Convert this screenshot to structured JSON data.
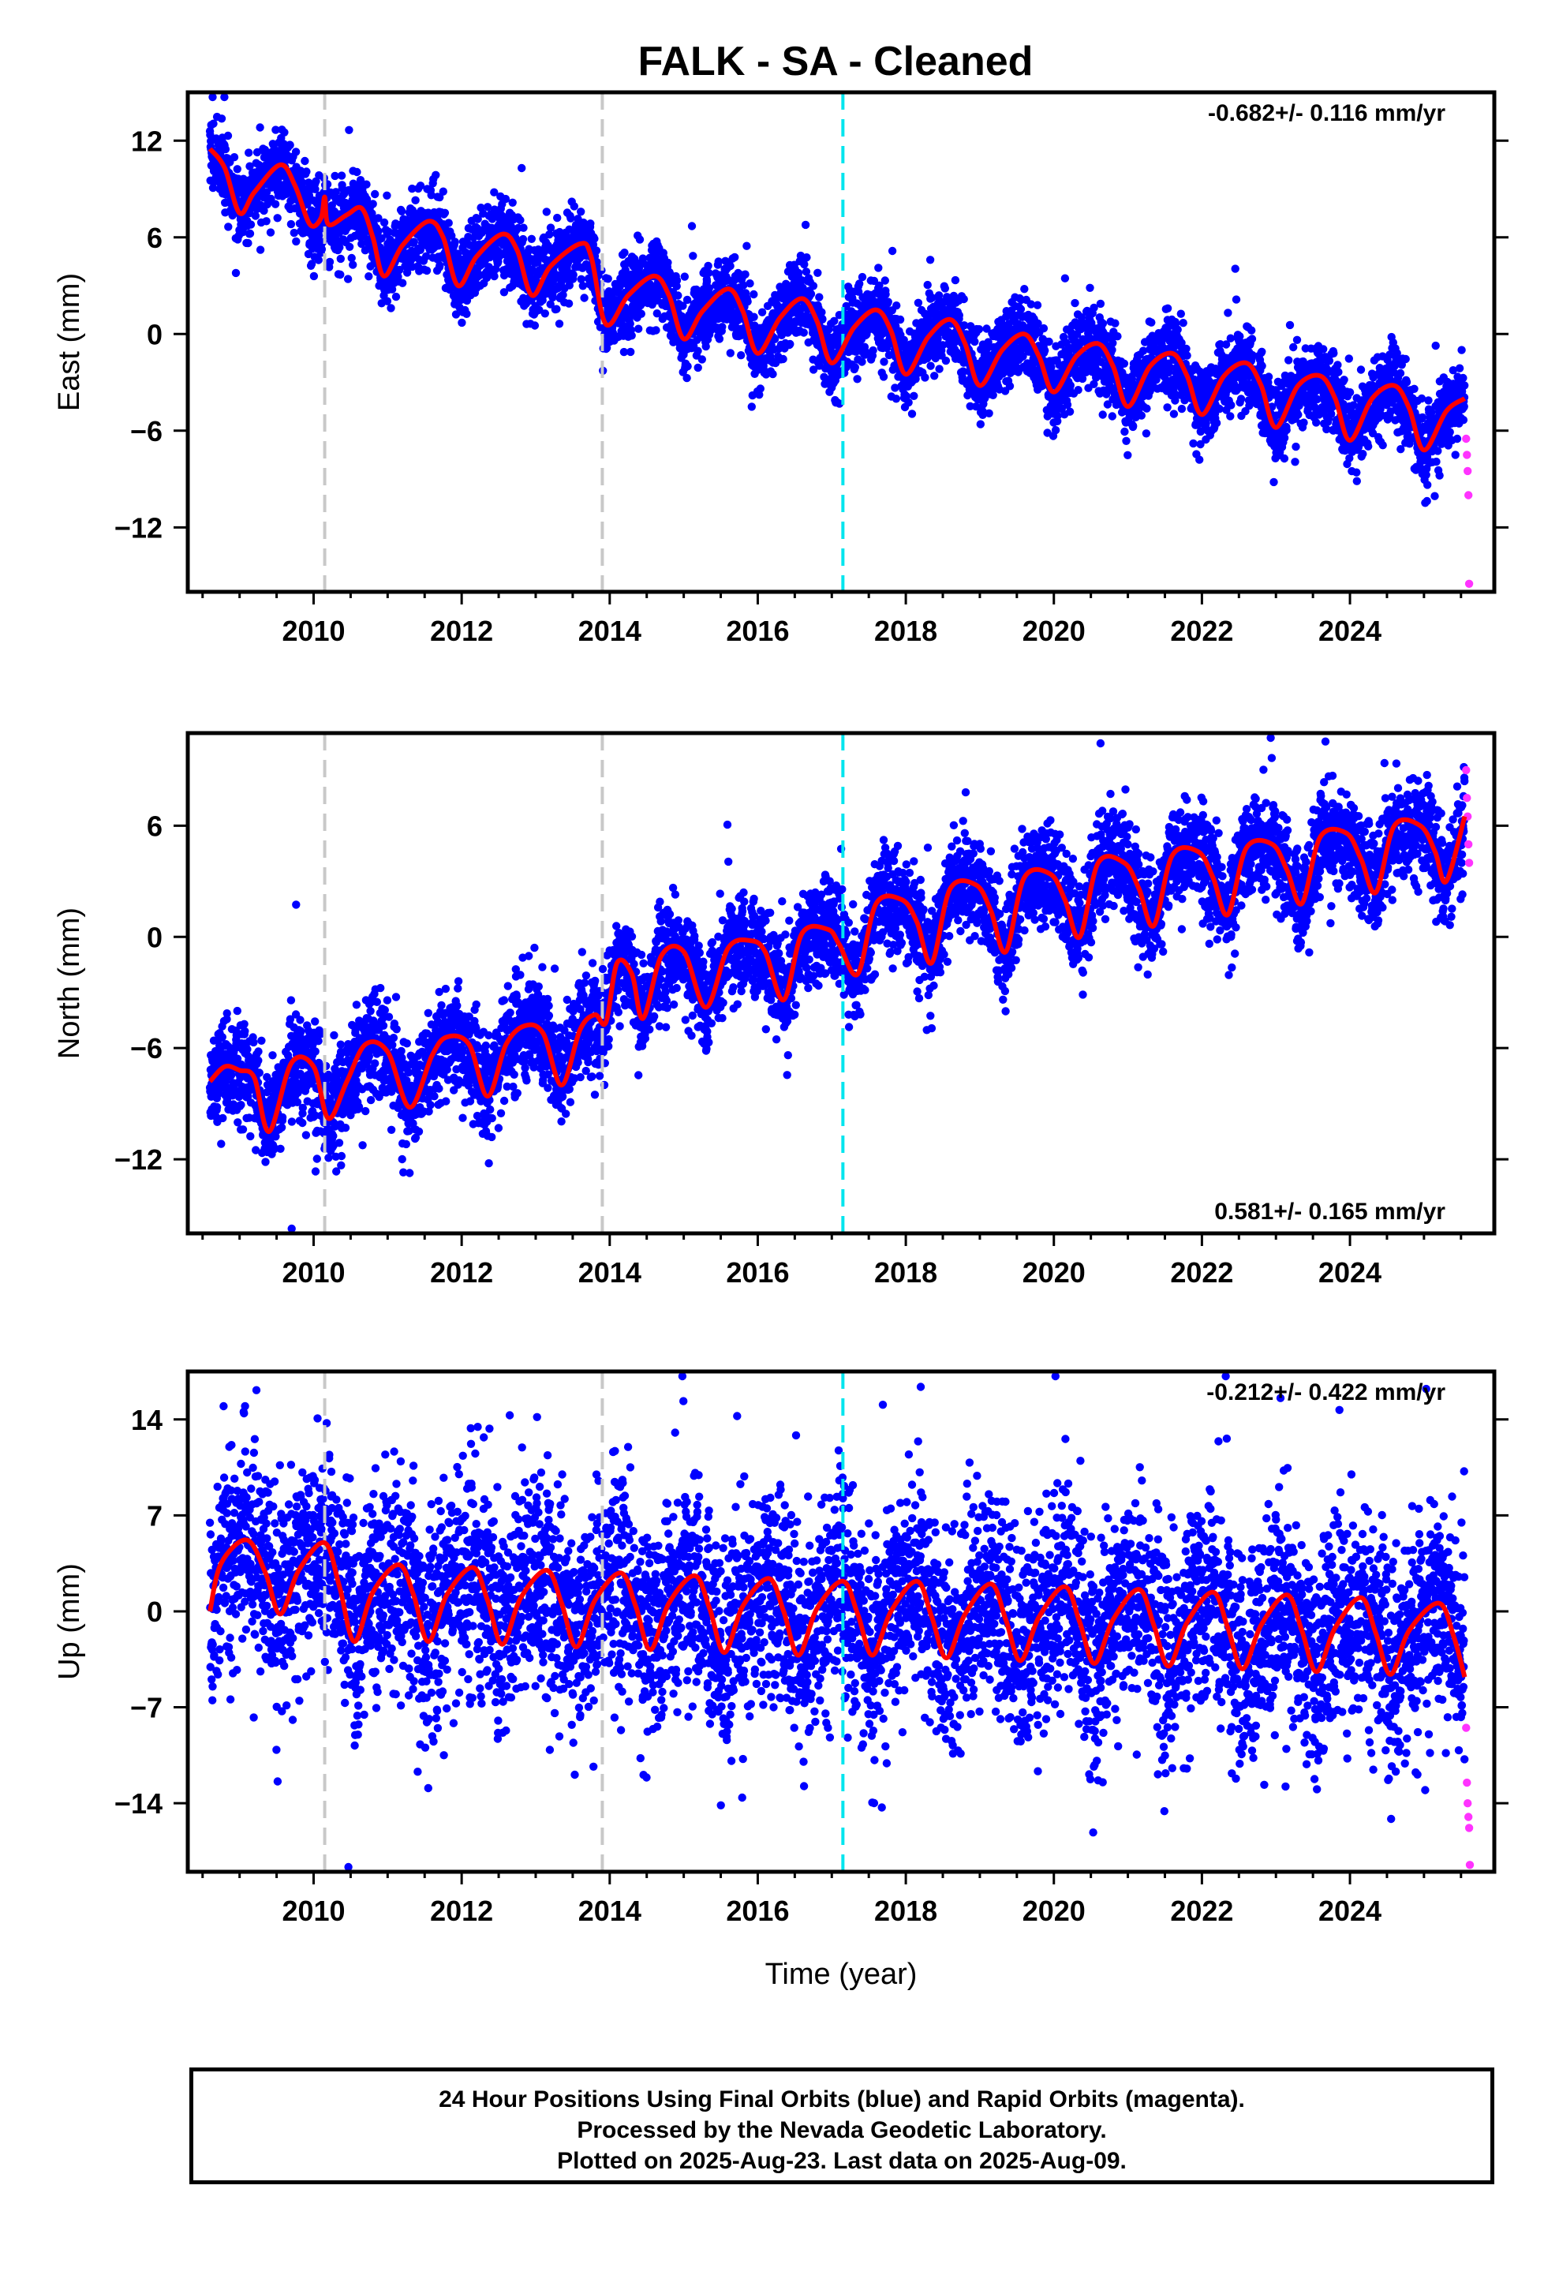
{
  "title": "FALK  - SA - Cleaned",
  "colors": {
    "final_orbits": "#0000ff",
    "rapid_orbits": "#ff33ff",
    "model": "#ff0000",
    "equipment_change": "#c8c8c8",
    "earthquake_event": "#00e5ee",
    "axes": "#000000"
  },
  "caption": {
    "line1": "24 Hour Positions Using Final Orbits (blue) and Rapid Orbits (magenta).",
    "line2": "Processed by the Nevada Geodetic Laboratory.",
    "line3": "Plotted on 2025-Aug-23. Last data on 2025-Aug-09."
  },
  "chart_data": [
    {
      "type": "scatter",
      "component": "east",
      "ylabel": "East (mm)",
      "xlabel": "",
      "xlim": [
        2008.3,
        2025.95
      ],
      "ylim": [
        -16,
        15
      ],
      "xticks": [
        2010,
        2012,
        2014,
        2016,
        2018,
        2020,
        2022,
        2024
      ],
      "yticks": [
        12,
        6,
        0,
        -6,
        -12
      ],
      "ytick_labels": [
        "12",
        "6",
        "0",
        "−6",
        "−12"
      ],
      "rate_text": "-0.682+/- 0.116 mm/yr",
      "rate_position": "top-right",
      "series": [
        {
          "role": "final-orbits",
          "color": "#0000ff",
          "start": 2008.6,
          "end": 2025.55,
          "level_at_start": 10.5,
          "level_at_end": -4.5,
          "seasonal_amplitude": 2.0,
          "scatter": 1.2
        },
        {
          "role": "rapid-orbits",
          "color": "#ff33ff",
          "x": [
            2025.57,
            2025.58,
            2025.59,
            2025.6,
            2025.61
          ],
          "y": [
            -6.5,
            -7.5,
            -8.5,
            -10,
            -15.5
          ]
        }
      ],
      "model": [
        [
          2008.6,
          11.5
        ],
        [
          2008.8,
          10.3
        ],
        [
          2009.0,
          7.5
        ],
        [
          2009.2,
          8.8
        ],
        [
          2009.55,
          10.5
        ],
        [
          2009.75,
          9.2
        ],
        [
          2009.95,
          6.8
        ],
        [
          2010.1,
          7.2
        ],
        [
          2010.15,
          8.5
        ],
        [
          2010.2,
          6.8
        ],
        [
          2010.45,
          7.4
        ],
        [
          2010.65,
          7.8
        ],
        [
          2010.8,
          6.0
        ],
        [
          2010.95,
          3.6
        ],
        [
          2011.2,
          5.5
        ],
        [
          2011.55,
          7.0
        ],
        [
          2011.75,
          6.0
        ],
        [
          2011.95,
          3.0
        ],
        [
          2012.2,
          4.8
        ],
        [
          2012.55,
          6.2
        ],
        [
          2012.75,
          5.2
        ],
        [
          2012.95,
          2.4
        ],
        [
          2013.2,
          4.2
        ],
        [
          2013.6,
          5.6
        ],
        [
          2013.75,
          4.8
        ],
        [
          2013.95,
          0.6
        ],
        [
          2014.25,
          2.4
        ],
        [
          2014.6,
          3.6
        ],
        [
          2014.8,
          2.4
        ],
        [
          2015.0,
          -0.3
        ],
        [
          2015.25,
          1.4
        ],
        [
          2015.6,
          2.8
        ],
        [
          2015.8,
          1.4
        ],
        [
          2016.0,
          -1.2
        ],
        [
          2016.3,
          1.0
        ],
        [
          2016.6,
          2.2
        ],
        [
          2016.8,
          0.8
        ],
        [
          2017.0,
          -1.8
        ],
        [
          2017.3,
          0.4
        ],
        [
          2017.6,
          1.5
        ],
        [
          2017.8,
          0.2
        ],
        [
          2018.0,
          -2.5
        ],
        [
          2018.3,
          -0.2
        ],
        [
          2018.6,
          0.9
        ],
        [
          2018.8,
          -0.6
        ],
        [
          2019.0,
          -3.2
        ],
        [
          2019.3,
          -1.0
        ],
        [
          2019.6,
          0.0
        ],
        [
          2019.8,
          -1.4
        ],
        [
          2020.0,
          -3.6
        ],
        [
          2020.3,
          -1.4
        ],
        [
          2020.6,
          -0.6
        ],
        [
          2020.8,
          -2.0
        ],
        [
          2021.0,
          -4.5
        ],
        [
          2021.3,
          -2.0
        ],
        [
          2021.6,
          -1.2
        ],
        [
          2021.8,
          -2.6
        ],
        [
          2022.0,
          -5.0
        ],
        [
          2022.3,
          -2.6
        ],
        [
          2022.6,
          -1.8
        ],
        [
          2022.8,
          -3.2
        ],
        [
          2023.0,
          -5.8
        ],
        [
          2023.3,
          -3.2
        ],
        [
          2023.6,
          -2.6
        ],
        [
          2023.8,
          -4.0
        ],
        [
          2024.0,
          -6.6
        ],
        [
          2024.3,
          -4.0
        ],
        [
          2024.6,
          -3.2
        ],
        [
          2024.8,
          -4.6
        ],
        [
          2025.0,
          -7.2
        ],
        [
          2025.3,
          -4.8
        ],
        [
          2025.55,
          -4.0
        ]
      ],
      "vlines": [
        {
          "x": 2010.15,
          "kind": "equipment_change"
        },
        {
          "x": 2013.9,
          "kind": "equipment_change"
        },
        {
          "x": 2017.15,
          "kind": "earthquake_event"
        }
      ]
    },
    {
      "type": "scatter",
      "component": "north",
      "ylabel": "North (mm)",
      "xlabel": "",
      "xlim": [
        2008.3,
        2025.95
      ],
      "ylim": [
        -16,
        11
      ],
      "xticks": [
        2010,
        2012,
        2014,
        2016,
        2018,
        2020,
        2022,
        2024
      ],
      "yticks": [
        6,
        0,
        -6,
        -12
      ],
      "ytick_labels": [
        "6",
        "0",
        "−6",
        "−12"
      ],
      "rate_text": "0.581+/- 0.165 mm/yr",
      "rate_position": "bottom-right",
      "series": [
        {
          "role": "final-orbits",
          "color": "#0000ff",
          "start": 2008.6,
          "end": 2025.55,
          "level_at_start": -8.0,
          "level_at_end": 5.5,
          "seasonal_amplitude": 1.8,
          "scatter": 1.3
        },
        {
          "role": "rapid-orbits",
          "color": "#ff33ff",
          "x": [
            2025.57,
            2025.58,
            2025.59,
            2025.6,
            2025.61
          ],
          "y": [
            9,
            7.5,
            6.5,
            5,
            4
          ]
        }
      ],
      "model": [
        [
          2008.6,
          -7.8
        ],
        [
          2008.8,
          -7.0
        ],
        [
          2009.0,
          -7.2
        ],
        [
          2009.2,
          -7.6
        ],
        [
          2009.4,
          -10.5
        ],
        [
          2009.7,
          -6.8
        ],
        [
          2010.0,
          -7.0
        ],
        [
          2010.2,
          -9.8
        ],
        [
          2010.45,
          -7.8
        ],
        [
          2010.7,
          -5.8
        ],
        [
          2011.0,
          -6.2
        ],
        [
          2011.3,
          -9.2
        ],
        [
          2011.6,
          -6.4
        ],
        [
          2011.8,
          -5.4
        ],
        [
          2012.1,
          -5.8
        ],
        [
          2012.35,
          -8.6
        ],
        [
          2012.6,
          -5.8
        ],
        [
          2012.85,
          -4.8
        ],
        [
          2013.1,
          -5.2
        ],
        [
          2013.35,
          -8.0
        ],
        [
          2013.6,
          -5.0
        ],
        [
          2013.8,
          -4.2
        ],
        [
          2013.95,
          -4.6
        ],
        [
          2014.1,
          -1.4
        ],
        [
          2014.3,
          -2.0
        ],
        [
          2014.45,
          -4.4
        ],
        [
          2014.7,
          -1.0
        ],
        [
          2015.0,
          -0.8
        ],
        [
          2015.3,
          -3.8
        ],
        [
          2015.6,
          -0.6
        ],
        [
          2015.9,
          -0.2
        ],
        [
          2016.1,
          -0.8
        ],
        [
          2016.35,
          -3.4
        ],
        [
          2016.6,
          0.2
        ],
        [
          2016.95,
          0.4
        ],
        [
          2017.1,
          -0.4
        ],
        [
          2017.35,
          -2.0
        ],
        [
          2017.6,
          1.8
        ],
        [
          2017.95,
          2.0
        ],
        [
          2018.15,
          0.8
        ],
        [
          2018.35,
          -1.4
        ],
        [
          2018.6,
          2.6
        ],
        [
          2018.95,
          2.8
        ],
        [
          2019.15,
          1.4
        ],
        [
          2019.35,
          -0.8
        ],
        [
          2019.6,
          3.2
        ],
        [
          2019.95,
          3.4
        ],
        [
          2020.15,
          2.0
        ],
        [
          2020.35,
          0.0
        ],
        [
          2020.6,
          4.0
        ],
        [
          2020.95,
          4.0
        ],
        [
          2021.15,
          2.6
        ],
        [
          2021.35,
          0.6
        ],
        [
          2021.6,
          4.4
        ],
        [
          2021.95,
          4.6
        ],
        [
          2022.15,
          3.2
        ],
        [
          2022.35,
          1.2
        ],
        [
          2022.6,
          4.8
        ],
        [
          2022.95,
          5.0
        ],
        [
          2023.15,
          3.6
        ],
        [
          2023.35,
          1.8
        ],
        [
          2023.6,
          5.4
        ],
        [
          2023.95,
          5.6
        ],
        [
          2024.15,
          4.2
        ],
        [
          2024.35,
          2.4
        ],
        [
          2024.6,
          6.0
        ],
        [
          2024.95,
          6.0
        ],
        [
          2025.15,
          4.6
        ],
        [
          2025.3,
          3.0
        ],
        [
          2025.55,
          6.5
        ]
      ],
      "vlines": [
        {
          "x": 2010.15,
          "kind": "equipment_change"
        },
        {
          "x": 2013.9,
          "kind": "equipment_change"
        },
        {
          "x": 2017.15,
          "kind": "earthquake_event"
        }
      ]
    },
    {
      "type": "scatter",
      "component": "up",
      "ylabel": "Up (mm)",
      "xlabel": "Time (year)",
      "xlim": [
        2008.3,
        2025.95
      ],
      "ylim": [
        -19,
        17.5
      ],
      "xticks": [
        2010,
        2012,
        2014,
        2016,
        2018,
        2020,
        2022,
        2024
      ],
      "yticks": [
        14,
        7,
        0,
        -7,
        -14
      ],
      "ytick_labels": [
        "14",
        "7",
        "0",
        "−7",
        "−14"
      ],
      "rate_text": "-0.212+/- 0.422 mm/yr",
      "rate_position": "top-right",
      "series": [
        {
          "role": "final-orbits",
          "color": "#0000ff",
          "start": 2008.6,
          "end": 2025.55,
          "level_at_start": 1.5,
          "level_at_end": -1.5,
          "seasonal_amplitude": 3.2,
          "scatter": 3.8
        },
        {
          "role": "rapid-orbits",
          "color": "#ff33ff",
          "x": [
            2025.57,
            2025.58,
            2025.59,
            2025.6,
            2025.61,
            2025.62
          ],
          "y": [
            -8.5,
            -12.5,
            -14,
            -15,
            -15.8,
            -18.5
          ]
        }
      ],
      "model": [
        [
          2008.6,
          0.0
        ],
        [
          2008.75,
          3.5
        ],
        [
          2009.1,
          5.2
        ],
        [
          2009.35,
          2.8
        ],
        [
          2009.55,
          -0.2
        ],
        [
          2009.8,
          3.0
        ],
        [
          2010.15,
          5.0
        ],
        [
          2010.35,
          1.8
        ],
        [
          2010.55,
          -2.2
        ],
        [
          2010.8,
          1.4
        ],
        [
          2011.15,
          3.4
        ],
        [
          2011.35,
          1.2
        ],
        [
          2011.55,
          -2.2
        ],
        [
          2011.8,
          1.2
        ],
        [
          2012.15,
          3.2
        ],
        [
          2012.35,
          0.8
        ],
        [
          2012.55,
          -2.4
        ],
        [
          2012.8,
          1.0
        ],
        [
          2013.15,
          3.0
        ],
        [
          2013.35,
          0.6
        ],
        [
          2013.55,
          -2.6
        ],
        [
          2013.8,
          0.8
        ],
        [
          2014.15,
          2.8
        ],
        [
          2014.35,
          0.4
        ],
        [
          2014.55,
          -2.8
        ],
        [
          2014.8,
          0.6
        ],
        [
          2015.15,
          2.6
        ],
        [
          2015.35,
          0.2
        ],
        [
          2015.55,
          -3.0
        ],
        [
          2015.8,
          0.4
        ],
        [
          2016.15,
          2.4
        ],
        [
          2016.35,
          0.0
        ],
        [
          2016.55,
          -3.2
        ],
        [
          2016.8,
          0.2
        ],
        [
          2017.15,
          2.2
        ],
        [
          2017.35,
          -0.2
        ],
        [
          2017.55,
          -3.2
        ],
        [
          2017.8,
          0.0
        ],
        [
          2018.15,
          2.2
        ],
        [
          2018.35,
          -0.4
        ],
        [
          2018.55,
          -3.4
        ],
        [
          2018.8,
          -0.2
        ],
        [
          2019.15,
          2.0
        ],
        [
          2019.35,
          -0.6
        ],
        [
          2019.55,
          -3.6
        ],
        [
          2019.8,
          -0.4
        ],
        [
          2020.15,
          1.8
        ],
        [
          2020.35,
          -0.8
        ],
        [
          2020.55,
          -3.8
        ],
        [
          2020.8,
          -0.6
        ],
        [
          2021.15,
          1.6
        ],
        [
          2021.35,
          -1.0
        ],
        [
          2021.55,
          -4.0
        ],
        [
          2021.8,
          -0.8
        ],
        [
          2022.15,
          1.4
        ],
        [
          2022.35,
          -1.2
        ],
        [
          2022.55,
          -4.2
        ],
        [
          2022.8,
          -1.0
        ],
        [
          2023.15,
          1.2
        ],
        [
          2023.35,
          -1.4
        ],
        [
          2023.55,
          -4.4
        ],
        [
          2023.8,
          -1.2
        ],
        [
          2024.15,
          1.0
        ],
        [
          2024.35,
          -1.6
        ],
        [
          2024.55,
          -4.6
        ],
        [
          2024.8,
          -1.4
        ],
        [
          2025.2,
          0.6
        ],
        [
          2025.4,
          -1.8
        ],
        [
          2025.55,
          -4.8
        ]
      ],
      "vlines": [
        {
          "x": 2010.15,
          "kind": "equipment_change"
        },
        {
          "x": 2013.9,
          "kind": "equipment_change"
        },
        {
          "x": 2017.15,
          "kind": "earthquake_event"
        }
      ]
    }
  ]
}
